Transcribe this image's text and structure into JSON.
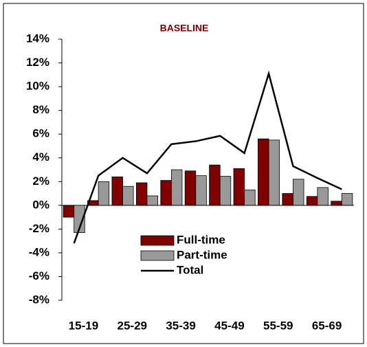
{
  "chart_data": {
    "type": "bar",
    "title": "BASELINE",
    "categories": [
      "15-19",
      null,
      "25-29",
      null,
      "35-39",
      null,
      "45-49",
      null,
      "55-59",
      null,
      "65-69",
      null
    ],
    "series": [
      {
        "name": "Full-time",
        "type": "bar",
        "color": "#800000",
        "values": [
          -1.0,
          0.4,
          2.4,
          1.9,
          2.1,
          2.9,
          3.4,
          3.1,
          5.6,
          1.0,
          0.75,
          0.35
        ]
      },
      {
        "name": "Part-time",
        "type": "bar",
        "color": "#999999",
        "values": [
          -2.3,
          2.0,
          1.6,
          0.8,
          3.0,
          2.5,
          2.45,
          1.3,
          5.5,
          2.2,
          1.5,
          1.0
        ]
      },
      {
        "name": "Total",
        "type": "line",
        "color": "#000000",
        "values": [
          -3.2,
          2.5,
          4.0,
          2.7,
          5.15,
          5.4,
          5.85,
          4.4,
          11.1,
          3.3,
          2.3,
          1.35
        ]
      }
    ],
    "ylim": [
      -8,
      14
    ],
    "yticks": [
      {
        "value": -8,
        "label": "-8%"
      },
      {
        "value": -6,
        "label": "-6%"
      },
      {
        "value": -4,
        "label": "-4%"
      },
      {
        "value": -2,
        "label": "-2%"
      },
      {
        "value": 0,
        "label": "0%"
      },
      {
        "value": 2,
        "label": "2%"
      },
      {
        "value": 4,
        "label": "4%"
      },
      {
        "value": 6,
        "label": "6%"
      },
      {
        "value": 8,
        "label": "8%"
      },
      {
        "value": 10,
        "label": "10%"
      },
      {
        "value": 12,
        "label": "12%"
      },
      {
        "value": 14,
        "label": "14%"
      }
    ],
    "legend": "center",
    "grid": false
  }
}
